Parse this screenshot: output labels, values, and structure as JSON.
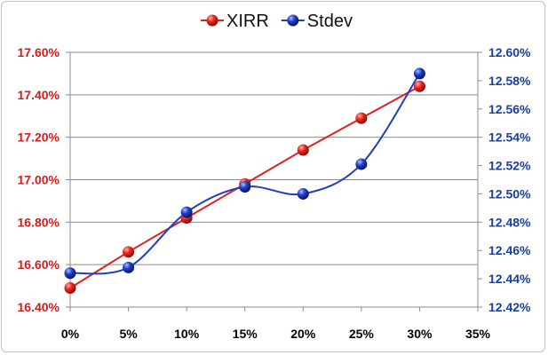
{
  "chart_data": {
    "type": "line",
    "title": "",
    "xlabel": "",
    "ylabel": "",
    "y2label": "",
    "x": [
      "0%",
      "5%",
      "10%",
      "15%",
      "20%",
      "25%",
      "30%"
    ],
    "x_ticks": [
      "0%",
      "5%",
      "10%",
      "15%",
      "20%",
      "25%",
      "30%",
      "35%"
    ],
    "ylim": [
      16.4,
      17.6
    ],
    "y_ticks": [
      "16.40%",
      "16.60%",
      "16.80%",
      "17.00%",
      "17.20%",
      "17.40%",
      "17.60%"
    ],
    "y_ticks_values": [
      16.4,
      16.6,
      16.8,
      17.0,
      17.2,
      17.4,
      17.6
    ],
    "y2lim": [
      12.42,
      12.6
    ],
    "y2_ticks": [
      "12.42%",
      "12.44%",
      "12.46%",
      "12.48%",
      "12.50%",
      "12.52%",
      "12.54%",
      "12.56%",
      "12.58%",
      "12.60%"
    ],
    "y2_ticks_values": [
      12.42,
      12.44,
      12.46,
      12.48,
      12.5,
      12.52,
      12.54,
      12.56,
      12.58,
      12.6
    ],
    "grid": "horizontal",
    "legend_position": "top",
    "series": [
      {
        "name": "XIRR",
        "axis": "left",
        "style": "straight",
        "color": "#e02020",
        "values": [
          16.49,
          16.66,
          16.82,
          16.98,
          17.14,
          17.29,
          17.44
        ]
      },
      {
        "name": "Stdev",
        "axis": "right",
        "style": "smooth",
        "color": "#1f3fbf",
        "values": [
          12.444,
          12.448,
          12.487,
          12.505,
          12.5,
          12.521,
          12.585
        ]
      }
    ]
  }
}
